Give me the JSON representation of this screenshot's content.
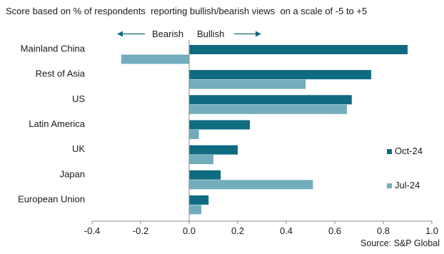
{
  "chart_data": {
    "type": "bar",
    "orientation": "horizontal",
    "title": "Score based on % of respondents  reporting bullish/bearish views  on a scale of -5 to +5",
    "annotations": {
      "bearish": "Bearish",
      "bullish": "Bullish"
    },
    "categories": [
      "Mainland China",
      "Rest of Asia",
      "US",
      "Latin America",
      "UK",
      "Japan",
      "European Union"
    ],
    "series": [
      {
        "name": "Oct-24",
        "color": "#0f6b80",
        "values": [
          0.9,
          0.75,
          0.67,
          0.25,
          0.2,
          0.13,
          0.08
        ]
      },
      {
        "name": "Jul-24",
        "color": "#73adbd",
        "values": [
          -0.28,
          0.48,
          0.65,
          0.04,
          0.1,
          0.51,
          0.05
        ]
      }
    ],
    "xlim": [
      -0.4,
      1.0
    ],
    "xticks": [
      -0.4,
      -0.2,
      0.0,
      0.2,
      0.4,
      0.6,
      0.8,
      1.0
    ],
    "xtick_labels": [
      "-0.4",
      "-0.2",
      "0.0",
      "0.2",
      "0.4",
      "0.6",
      "0.8",
      "1.0"
    ],
    "legend_position": "right",
    "grid": false,
    "source": "Source: S&P Global"
  }
}
